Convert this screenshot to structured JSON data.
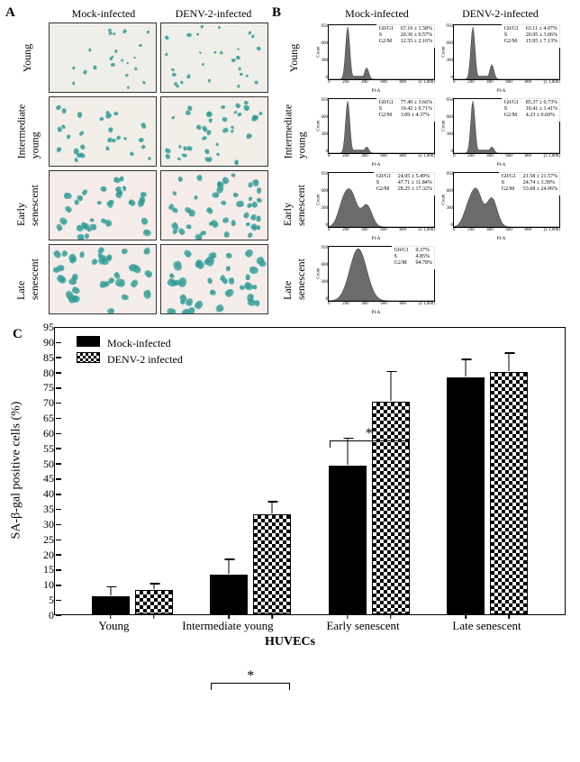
{
  "panels": {
    "A": "A",
    "B": "B",
    "C": "C"
  },
  "column_headers": {
    "mock": "Mock-infected",
    "denv": "DENV-2-infected"
  },
  "row_labels": {
    "young": "Young",
    "inter": "Intermediate\nyoung",
    "early": "Early\nsenescent",
    "late": "Late\nsenescent"
  },
  "micrograph_style": {
    "young": {
      "bg": "#efeee9",
      "n_dots_mock": 22,
      "n_dots_denv": 30,
      "dot_size": [
        3,
        5
      ]
    },
    "inter": {
      "bg": "#f2efe8",
      "n_dots_mock": 28,
      "n_dots_denv": 40,
      "dot_size": [
        4,
        7
      ]
    },
    "early": {
      "bg": "#f6ece9",
      "n_dots_mock": 34,
      "n_dots_denv": 44,
      "dot_size": [
        5,
        9
      ]
    },
    "late": {
      "bg": "#f5edea",
      "n_dots_mock": 36,
      "n_dots_denv": 40,
      "dot_size": [
        6,
        11
      ]
    }
  },
  "flow_xticks": [
    "0",
    "200",
    "400",
    "600",
    "800",
    "(x 1,000)"
  ],
  "flow_yticks": [
    "0",
    "300",
    "600",
    "950"
  ],
  "flow_xlabel": "PI-A",
  "flow_ylabel": "Count",
  "flow": {
    "young": {
      "mock": {
        "peaks": [
          [
            0.18,
            1.0
          ],
          [
            0.36,
            0.22
          ]
        ],
        "phases": {
          "G0/G1": "67.10 ± 1.58%",
          "S": "20.36 ± 0.57%",
          "G2/M": "12.55 ± 2.16%"
        }
      },
      "denv": {
        "peaks": [
          [
            0.18,
            1.0
          ],
          [
            0.36,
            0.28
          ]
        ],
        "phases": {
          "G0/G1": "63.11 ± 4.07%",
          "S": "20.95 ± 3.06%",
          "G2/M": "15.95 ± 7.13%"
        }
      }
    },
    "inter": {
      "mock": {
        "peaks": [
          [
            0.18,
            1.0
          ],
          [
            0.36,
            0.12
          ]
        ],
        "phases": {
          "G0/G1": "77.49 ± 3.66%",
          "S": "19.42 ± 0.71%",
          "G2/M": "3.09 ± 4.37%"
        }
      },
      "denv": {
        "peaks": [
          [
            0.18,
            1.0
          ],
          [
            0.36,
            0.12
          ]
        ],
        "phases": {
          "G0/G1": "85.37 ± 0.73%",
          "S": "10.41 ± 1.41%",
          "G2/M": "4.23 ± 0.69%"
        }
      }
    },
    "early": {
      "mock": {
        "peaks": [
          [
            0.14,
            0.45
          ],
          [
            0.22,
            0.55
          ],
          [
            0.36,
            0.42
          ]
        ],
        "broad": true,
        "phases": {
          "G0/G1": "24.05 ± 5.49%",
          "S": "47.71 ± 11.84%",
          "G2/M": "28.25 ± 17.32%"
        }
      },
      "denv": {
        "peaks": [
          [
            0.14,
            0.35
          ],
          [
            0.22,
            0.62
          ],
          [
            0.36,
            0.55
          ]
        ],
        "broad": true,
        "phases": {
          "G0/G1": "21.58 ± 21.57%",
          "S": "24.74 ± 3.39%",
          "G2/M": "53.68 ± 24.96%"
        }
      }
    },
    "late": {
      "mock": {
        "peaks": [
          [
            0.28,
            1.0
          ]
        ],
        "broad": true,
        "wide": true,
        "phases": {
          "G0/G1": "0.37%",
          "S": "4.85%",
          "G2/M": "94.78%"
        }
      }
    }
  },
  "chartC": {
    "ylabel": "SA-β-gal positive cells (%)",
    "xaxis_title": "HUVECs",
    "ymin": 0,
    "ymax": 95,
    "ytick_step": 5,
    "legend": {
      "mock": "Mock-infected",
      "denv": "DENV-2 infected"
    },
    "categories": [
      "Young",
      "Intermediate young",
      "Early senescent",
      "Late senescent"
    ],
    "series": {
      "mock": {
        "pattern": "solid",
        "values": [
          6,
          13,
          49,
          78
        ],
        "err": [
          3,
          5,
          9,
          6
        ]
      },
      "denv": {
        "pattern": "check",
        "values": [
          8,
          33,
          70,
          80
        ],
        "err": [
          2,
          4,
          10,
          6
        ]
      }
    },
    "significance": [
      {
        "group_index": 1,
        "y": 39,
        "label": "*"
      },
      {
        "group_index": 2,
        "y": 82,
        "label": "*"
      }
    ],
    "colors": {
      "solid_fill": "#000000",
      "check_a": "#000000",
      "check_b": "#ffffff",
      "border": "#000000",
      "bg": "#ffffff"
    }
  }
}
